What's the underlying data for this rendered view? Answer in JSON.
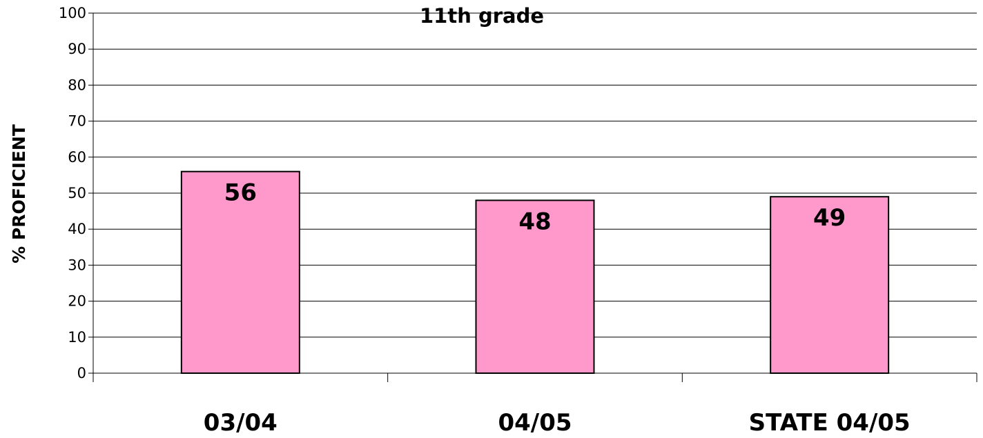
{
  "chart_data": {
    "type": "bar",
    "title": "11th grade",
    "xlabel": "",
    "ylabel": "% PROFICIENT",
    "categories": [
      "03/04",
      "04/05",
      "STATE 04/05"
    ],
    "values": [
      56,
      48,
      49
    ],
    "data_labels": [
      "56",
      "48",
      "49"
    ],
    "ylim": [
      0,
      100
    ],
    "yticks": [
      "0",
      "10",
      "20",
      "30",
      "40",
      "50",
      "60",
      "70",
      "80",
      "90",
      "100"
    ],
    "grid": true,
    "legend": "none",
    "bar_color": "#ff99cc"
  }
}
